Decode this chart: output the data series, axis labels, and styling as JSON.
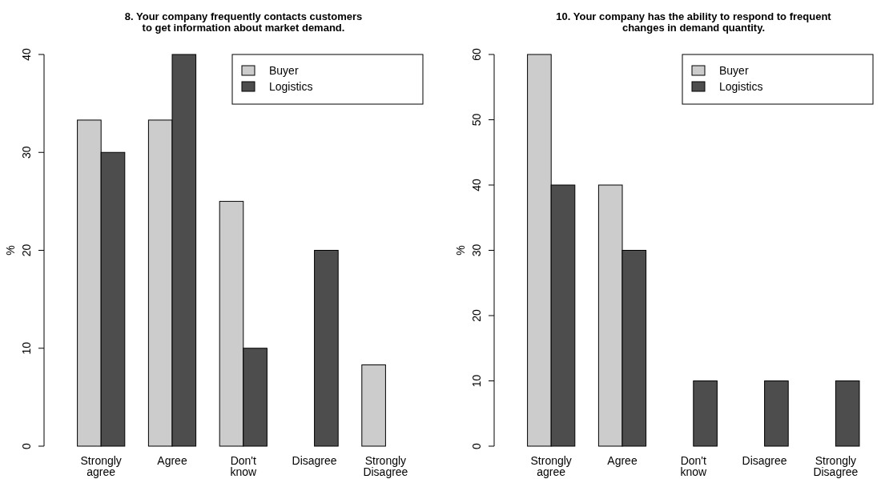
{
  "chart_data": [
    {
      "type": "bar",
      "title": "8. Your company frequently contacts customers\nto get information about market demand.",
      "ylabel": "%",
      "categories": [
        "Strongly\nagree",
        "Agree",
        "Don't\nknow",
        "Disagree",
        "Strongly\nDisagree"
      ],
      "series": [
        {
          "name": "Buyer",
          "color": "#cccccc",
          "values": [
            33.3,
            33.3,
            25,
            0,
            8.3
          ]
        },
        {
          "name": "Logistics",
          "color": "#4d4d4d",
          "values": [
            30,
            40,
            10,
            20,
            0
          ]
        }
      ],
      "ylim": [
        0,
        40
      ],
      "yticks": [
        0,
        10,
        20,
        30,
        40
      ],
      "legend": "top right"
    },
    {
      "type": "bar",
      "title": "10. Your company has the ability to respond to frequent\nchanges in demand quantity.",
      "ylabel": "%",
      "categories": [
        "Strongly\nagree",
        "Agree",
        "Don't\nknow",
        "Disagree",
        "Strongly\nDisagree"
      ],
      "series": [
        {
          "name": "Buyer",
          "color": "#cccccc",
          "values": [
            60,
            40,
            0,
            0,
            0
          ]
        },
        {
          "name": "Logistics",
          "color": "#4d4d4d",
          "values": [
            40,
            30,
            10,
            10,
            10
          ]
        }
      ],
      "ylim": [
        0,
        60
      ],
      "yticks": [
        0,
        10,
        20,
        30,
        40,
        50,
        60
      ],
      "legend": "top right"
    }
  ]
}
